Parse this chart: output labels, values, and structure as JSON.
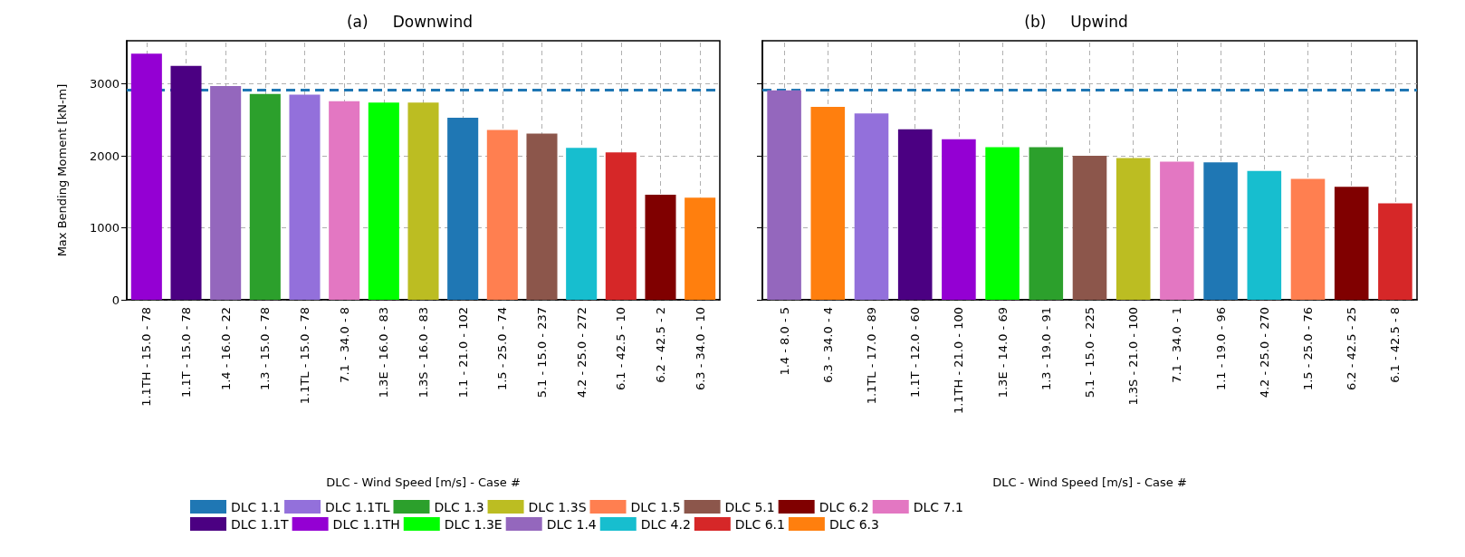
{
  "chart_data": [
    {
      "type": "bar",
      "title": "(a)     Downwind",
      "xlabel": "DLC - Wind Speed [m/s] - Case #",
      "ylabel": "Max Bending Moment [kN-m]",
      "categories": [
        "1.1TH - 15.0 - 78",
        "1.1T - 15.0 - 78",
        "1.4 - 16.0 - 22",
        "1.3 - 15.0 - 78",
        "1.1TL - 15.0 - 78",
        "7.1 - 34.0 - 8",
        "1.3E - 16.0 - 83",
        "1.3S - 16.0 - 83",
        "1.1 - 21.0 - 102",
        "1.5 - 25.0 - 74",
        "5.1 - 15.0 - 237",
        "4.2 - 25.0 - 272",
        "6.1 - 42.5 - 10",
        "6.2 - 42.5 - 2",
        "6.3 - 34.0 - 10"
      ],
      "stacked": true,
      "series": [
        {
          "name": "DLC 1.1",
          "color": "#1f77b4",
          "values": [
            null,
            null,
            null,
            null,
            null,
            null,
            null,
            null,
            2530,
            null,
            null,
            null,
            null,
            null,
            null
          ]
        },
        {
          "name": "DLC 1.1T",
          "color": "#4b0082",
          "values": [
            null,
            3250,
            null,
            null,
            null,
            null,
            null,
            null,
            null,
            null,
            null,
            null,
            null,
            null,
            null
          ]
        },
        {
          "name": "DLC 1.1TL",
          "color": "#9370db",
          "values": [
            null,
            null,
            null,
            null,
            2850,
            null,
            null,
            null,
            null,
            null,
            null,
            null,
            null,
            null,
            null
          ]
        },
        {
          "name": "DLC 1.1TH",
          "color": "#9400d3",
          "values": [
            3420,
            null,
            null,
            null,
            null,
            null,
            null,
            null,
            null,
            null,
            null,
            null,
            null,
            null,
            null
          ]
        },
        {
          "name": "DLC 1.3",
          "color": "#2ca02c",
          "values": [
            null,
            null,
            null,
            2860,
            null,
            null,
            null,
            null,
            null,
            null,
            null,
            null,
            null,
            null,
            null
          ]
        },
        {
          "name": "DLC 1.3E",
          "color": "#00ff00",
          "values": [
            null,
            null,
            null,
            null,
            null,
            null,
            2740,
            null,
            null,
            null,
            null,
            null,
            null,
            null,
            null
          ]
        },
        {
          "name": "DLC 1.3S",
          "color": "#bcbd22",
          "values": [
            null,
            null,
            null,
            null,
            null,
            null,
            null,
            2740,
            null,
            null,
            null,
            null,
            null,
            null,
            null
          ]
        },
        {
          "name": "DLC 1.4",
          "color": "#9467bd",
          "values": [
            null,
            null,
            2970,
            null,
            null,
            null,
            null,
            null,
            null,
            null,
            null,
            null,
            null,
            null,
            null
          ]
        },
        {
          "name": "DLC 1.5",
          "color": "#ff7f50",
          "values": [
            null,
            null,
            null,
            null,
            null,
            null,
            null,
            null,
            null,
            2360,
            null,
            null,
            null,
            null,
            null
          ]
        },
        {
          "name": "DLC 4.2",
          "color": "#17becf",
          "values": [
            null,
            null,
            null,
            null,
            null,
            null,
            null,
            null,
            null,
            null,
            null,
            2110,
            null,
            null,
            null
          ]
        },
        {
          "name": "DLC 5.1",
          "color": "#8c564b",
          "values": [
            null,
            null,
            null,
            null,
            null,
            null,
            null,
            null,
            null,
            null,
            2310,
            null,
            null,
            null,
            null
          ]
        },
        {
          "name": "DLC 6.1",
          "color": "#d62728",
          "values": [
            null,
            null,
            null,
            null,
            null,
            null,
            null,
            null,
            null,
            null,
            null,
            null,
            2050,
            null,
            null
          ]
        },
        {
          "name": "DLC 6.2",
          "color": "#800000",
          "values": [
            null,
            null,
            null,
            null,
            null,
            null,
            null,
            null,
            null,
            null,
            null,
            null,
            null,
            1460,
            null
          ]
        },
        {
          "name": "DLC 6.3",
          "color": "#ff7f0e",
          "values": [
            null,
            null,
            null,
            null,
            null,
            null,
            null,
            null,
            null,
            null,
            null,
            null,
            null,
            null,
            1420
          ]
        },
        {
          "name": "DLC 7.1",
          "color": "#e377c2",
          "values": [
            null,
            null,
            null,
            null,
            null,
            2760,
            null,
            null,
            null,
            null,
            null,
            null,
            null,
            null,
            null
          ]
        }
      ],
      "ylim": [
        0,
        3600
      ],
      "yticks": [
        0,
        1000,
        2000,
        3000
      ],
      "grid": true,
      "legend": "bottom",
      "ref_lines": [
        {
          "axis": "y",
          "value": 2920,
          "color": "#1f77b4",
          "line_style": "dashed"
        }
      ]
    },
    {
      "type": "bar",
      "title": "(b)     Upwind",
      "xlabel": "DLC - Wind Speed [m/s] - Case #",
      "categories": [
        "1.4 - 8.0 - 5",
        "6.3 - 34.0 - 4",
        "1.1TL - 17.0 - 89",
        "1.1T - 12.0 - 60",
        "1.1TH - 21.0 - 100",
        "1.3E - 14.0 - 69",
        "1.3 - 19.0 - 91",
        "5.1 - 15.0 - 225",
        "1.3S - 21.0 - 100",
        "7.1 - 34.0 - 1",
        "1.1 - 19.0 - 96",
        "4.2 - 25.0 - 270",
        "1.5 - 25.0 - 76",
        "6.2 - 42.5 - 25",
        "6.1 - 42.5 - 8"
      ],
      "stacked": true,
      "series": [
        {
          "color": "#1f77b4",
          "values": [
            null,
            null,
            null,
            null,
            null,
            null,
            null,
            null,
            null,
            null,
            1910,
            null,
            null,
            null,
            null
          ]
        },
        {
          "color": "#4b0082",
          "values": [
            null,
            null,
            null,
            2370,
            null,
            null,
            null,
            null,
            null,
            null,
            null,
            null,
            null,
            null,
            null
          ]
        },
        {
          "color": "#9370db",
          "values": [
            null,
            null,
            2590,
            null,
            null,
            null,
            null,
            null,
            null,
            null,
            null,
            null,
            null,
            null,
            null
          ]
        },
        {
          "color": "#9400d3",
          "values": [
            null,
            null,
            null,
            null,
            2230,
            null,
            null,
            null,
            null,
            null,
            null,
            null,
            null,
            null,
            null
          ]
        },
        {
          "color": "#2ca02c",
          "values": [
            null,
            null,
            null,
            null,
            null,
            null,
            2120,
            null,
            null,
            null,
            null,
            null,
            null,
            null,
            null
          ]
        },
        {
          "color": "#00ff00",
          "values": [
            null,
            null,
            null,
            null,
            null,
            2120,
            null,
            null,
            null,
            null,
            null,
            null,
            null,
            null,
            null
          ]
        },
        {
          "color": "#bcbd22",
          "values": [
            null,
            null,
            null,
            null,
            null,
            null,
            null,
            null,
            1970,
            null,
            null,
            null,
            null,
            null,
            null
          ]
        },
        {
          "color": "#9467bd",
          "values": [
            2910,
            null,
            null,
            null,
            null,
            null,
            null,
            null,
            null,
            null,
            null,
            null,
            null,
            null,
            null
          ]
        },
        {
          "color": "#ff7f50",
          "values": [
            null,
            null,
            null,
            null,
            null,
            null,
            null,
            null,
            null,
            null,
            null,
            null,
            1680,
            null,
            null
          ]
        },
        {
          "color": "#17becf",
          "values": [
            null,
            null,
            null,
            null,
            null,
            null,
            null,
            null,
            null,
            null,
            null,
            1790,
            null,
            null,
            null
          ]
        },
        {
          "color": "#8c564b",
          "values": [
            null,
            null,
            null,
            null,
            null,
            null,
            null,
            2000,
            null,
            null,
            null,
            null,
            null,
            null,
            null
          ]
        },
        {
          "color": "#d62728",
          "values": [
            null,
            null,
            null,
            null,
            null,
            null,
            null,
            null,
            null,
            null,
            null,
            null,
            null,
            null,
            1340
          ]
        },
        {
          "color": "#800000",
          "values": [
            null,
            null,
            null,
            null,
            null,
            null,
            null,
            null,
            null,
            null,
            null,
            null,
            null,
            1570,
            null
          ]
        },
        {
          "color": "#ff7f0e",
          "values": [
            null,
            2680,
            null,
            null,
            null,
            null,
            null,
            null,
            null,
            null,
            null,
            null,
            null,
            null,
            null
          ]
        },
        {
          "color": "#e377c2",
          "values": [
            null,
            null,
            null,
            null,
            null,
            null,
            null,
            null,
            null,
            1920,
            null,
            null,
            null,
            null,
            null
          ]
        }
      ],
      "ylim": [
        0,
        3600
      ],
      "yticks": [
        0,
        1000,
        2000,
        3000
      ],
      "grid": true,
      "tick_labels": "x",
      "ref_lines": [
        {
          "axis": "y",
          "value": 2920,
          "color": "#1f77b4",
          "line_style": "dashed"
        }
      ]
    }
  ]
}
